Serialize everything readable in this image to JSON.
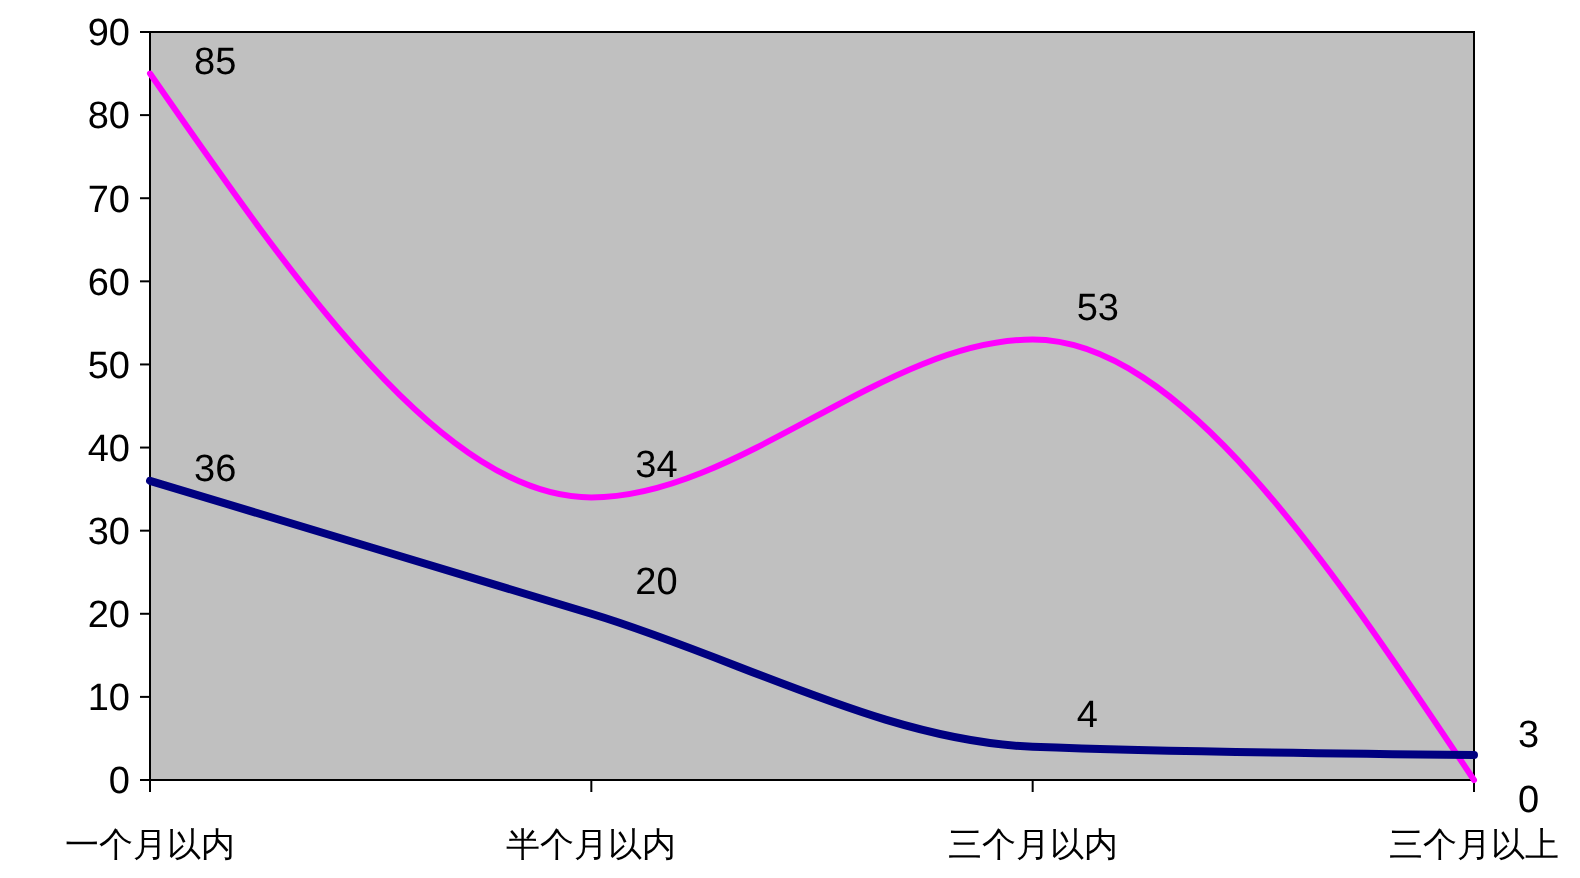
{
  "chart_data": {
    "type": "line",
    "categories": [
      "一个月以内",
      "半个月以内",
      "三个月以内",
      "三个月以上"
    ],
    "series": [
      {
        "color": "#ff00ff",
        "values": [
          85,
          34,
          53,
          0
        ]
      },
      {
        "color": "#000080",
        "values": [
          36,
          20,
          4,
          3
        ]
      }
    ],
    "ylim": [
      0,
      90
    ],
    "yticks": [
      0,
      10,
      20,
      30,
      40,
      50,
      60,
      70,
      80,
      90
    ],
    "grid": false,
    "data_labels": true,
    "marker": "none"
  }
}
